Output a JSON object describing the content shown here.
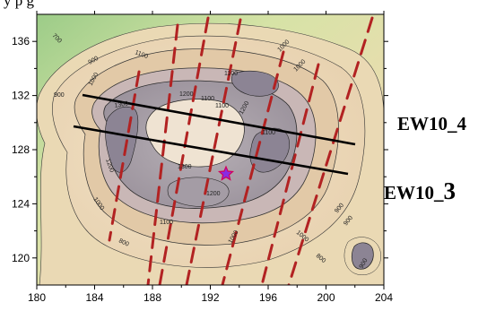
{
  "caption_fragment": "y                                   p                   g",
  "map": {
    "x_axis": {
      "ticks": [
        "180",
        "184",
        "188",
        "192",
        "196",
        "200",
        "204"
      ],
      "range": [
        180,
        204
      ]
    },
    "y_axis": {
      "ticks": [
        "120",
        "124",
        "128",
        "132",
        "136"
      ],
      "range": [
        118,
        138
      ]
    },
    "contour_labels": [
      "700",
      "900",
      "900",
      "1000",
      "1100",
      "1100",
      "1000",
      "1000",
      "1200",
      "1300",
      "1200",
      "1100",
      "1100",
      "1200",
      "1100",
      "1300",
      "1200",
      "1000",
      "1100",
      "1000",
      "800",
      "1000",
      "800",
      "900",
      "900",
      "900"
    ],
    "profiles": [
      {
        "name": "EW10_4",
        "start": [
          182.6,
          131.5
        ],
        "end": [
          201.5,
          128.0
        ]
      },
      {
        "name": "EW10_3",
        "start": [
          182.0,
          129.3
        ],
        "end": [
          201.0,
          126.0
        ]
      }
    ],
    "profile_labels": {
      "ew10_4": "EW10_4",
      "ew10_3_prefix": "EW10_",
      "ew10_3_suffix": "3"
    },
    "star_marker": {
      "x": 192.9,
      "y": 126.0
    },
    "colors": {
      "profile_line": "#000000",
      "dashed_track": "#b22222",
      "star_fill": "#8a2be2",
      "low_elevation": "#9ccc88",
      "high_elevation": "#8c8494"
    }
  }
}
